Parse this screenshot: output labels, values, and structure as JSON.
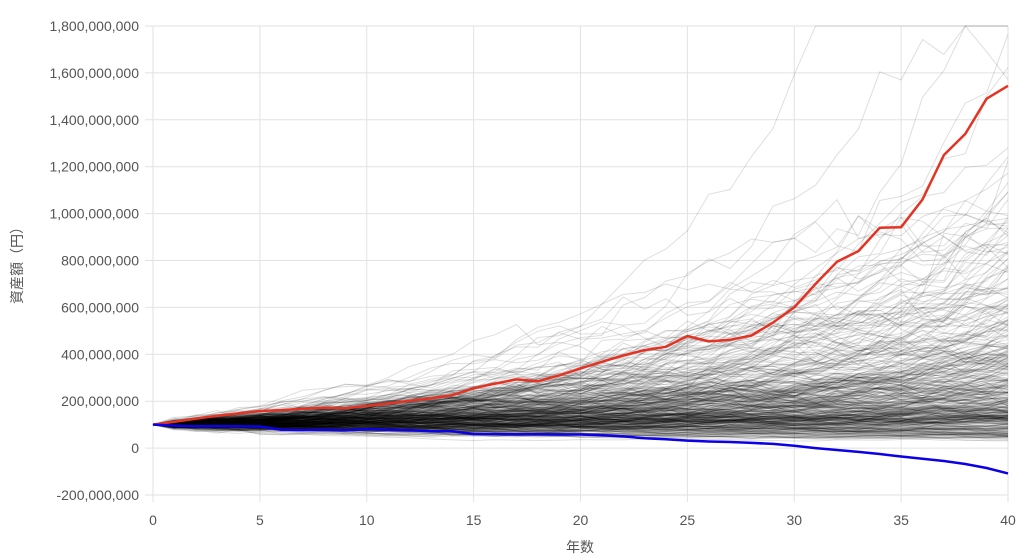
{
  "chart_data": {
    "type": "line",
    "xlabel": "年数",
    "ylabel": "資産額（円）",
    "xlim": [
      0,
      40
    ],
    "ylim": [
      -200000000,
      1800000000
    ],
    "x_ticks": [
      0,
      5,
      10,
      15,
      20,
      25,
      30,
      35,
      40
    ],
    "y_ticks": [
      -200000000,
      0,
      200000000,
      400000000,
      600000000,
      800000000,
      1000000000,
      1200000000,
      1400000000,
      1600000000,
      1800000000
    ],
    "y_tick_labels": [
      "-200,000,000",
      "0",
      "200,000,000",
      "400,000,000",
      "600,000,000",
      "800,000,000",
      "1,000,000,000",
      "1,200,000,000",
      "1,400,000,000",
      "1,600,000,000",
      "1,800,000,000"
    ],
    "x_tick_labels": [
      "0",
      "5",
      "10",
      "15",
      "20",
      "25",
      "30",
      "35",
      "40"
    ],
    "grid": true,
    "legend": "none",
    "x": [
      0,
      1,
      2,
      3,
      4,
      5,
      6,
      7,
      8,
      9,
      10,
      11,
      12,
      13,
      14,
      15,
      16,
      17,
      18,
      19,
      20,
      21,
      22,
      23,
      24,
      25,
      26,
      27,
      28,
      29,
      30,
      31,
      32,
      33,
      34,
      35,
      36,
      37,
      38,
      39,
      40
    ],
    "series": [
      {
        "color": "#e53323",
        "values": [
          100000000,
          112000000,
          125000000,
          138000000,
          148000000,
          158000000,
          162000000,
          168000000,
          172000000,
          170000000,
          180000000,
          190000000,
          202000000,
          212000000,
          226000000,
          255000000,
          275000000,
          293000000,
          285000000,
          310000000,
          340000000,
          368000000,
          395000000,
          418000000,
          432000000,
          478000000,
          455000000,
          462000000,
          480000000,
          535000000,
          600000000,
          700000000,
          795000000,
          840000000,
          940000000,
          942000000,
          1060000000,
          1250000000,
          1340000000,
          1490000000,
          1545000000
        ]
      },
      {
        "color": "#0b00e6",
        "values": [
          100000000,
          96000000,
          93000000,
          94000000,
          93000000,
          92000000,
          78000000,
          76000000,
          78000000,
          76000000,
          80000000,
          78000000,
          76000000,
          72000000,
          72000000,
          60000000,
          60000000,
          59000000,
          59000000,
          58000000,
          58000000,
          55000000,
          50000000,
          42000000,
          38000000,
          32000000,
          28000000,
          26000000,
          22000000,
          18000000,
          10000000,
          0,
          -8000000,
          -16000000,
          -25000000,
          -36000000,
          -45000000,
          -55000000,
          -68000000,
          -85000000,
          -108000000
        ]
      }
    ],
    "simulations": {
      "count": 400,
      "color": "#000000",
      "start_value": 100000000,
      "median_growth_per_year": 0.025,
      "spread_per_year": 0.08
    }
  }
}
